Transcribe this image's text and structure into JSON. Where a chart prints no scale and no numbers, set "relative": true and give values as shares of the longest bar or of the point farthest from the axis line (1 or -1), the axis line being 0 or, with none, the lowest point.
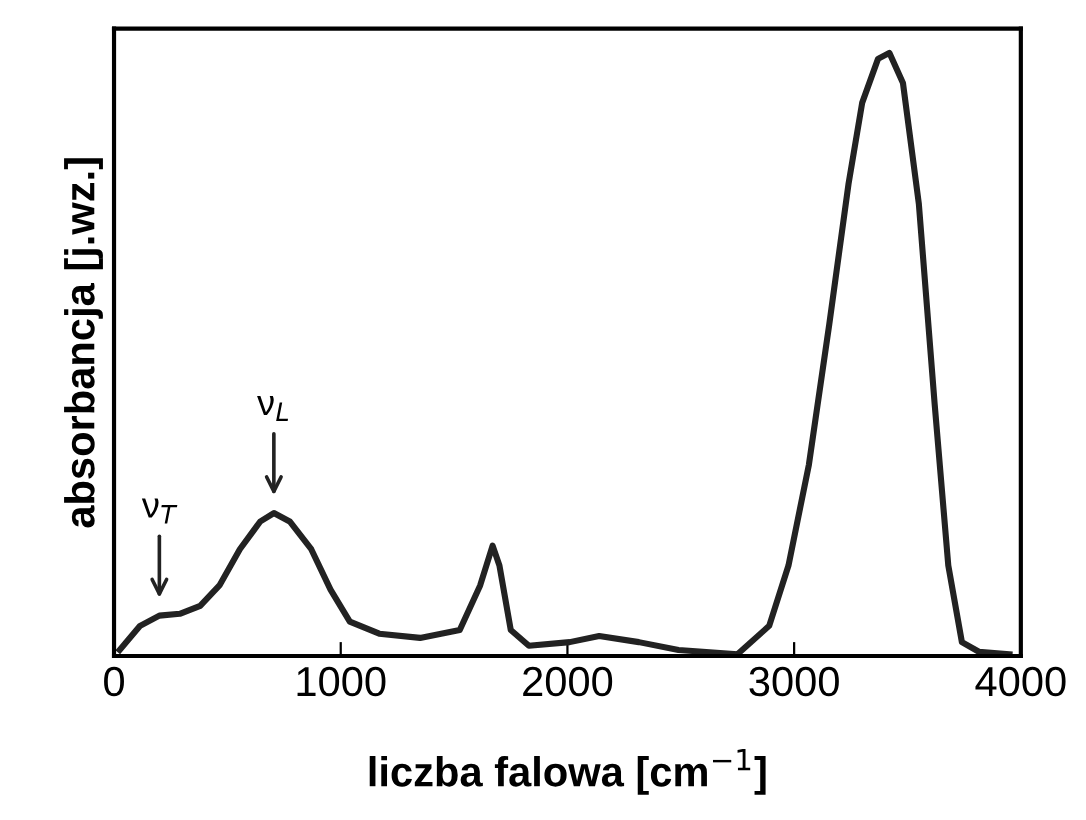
{
  "chart_data": {
    "type": "line",
    "relative": true,
    "xlabel": "liczba falowa [cm$^{−1}$]",
    "ylabel": "absorbancja [j.wz.]",
    "xlim": [
      0,
      4000
    ],
    "xticks": [
      0,
      1000,
      2000,
      3000,
      4000
    ],
    "grid": false,
    "legend": false,
    "marker": "none",
    "line_style": "solid",
    "series": [
      {
        "color": "#222222",
        "x": [
          25,
          115,
          200,
          290,
          380,
          465,
          555,
          645,
          705,
          775,
          870,
          955,
          1040,
          1170,
          1350,
          1525,
          1615,
          1670,
          1700,
          1750,
          1830,
          2010,
          2140,
          2315,
          2490,
          2750,
          2890,
          2975,
          3065,
          3155,
          3240,
          3300,
          3370,
          3420,
          3480,
          3550,
          3620,
          3680,
          3740,
          3815,
          3950
        ],
        "values": [
          0.01,
          0.05,
          0.067,
          0.07,
          0.083,
          0.117,
          0.177,
          0.223,
          0.237,
          0.223,
          0.177,
          0.11,
          0.057,
          0.037,
          0.03,
          0.043,
          0.117,
          0.183,
          0.15,
          0.043,
          0.017,
          0.023,
          0.033,
          0.023,
          0.01,
          0.003,
          0.05,
          0.15,
          0.317,
          0.55,
          0.783,
          0.917,
          0.99,
          1.0,
          0.95,
          0.75,
          0.417,
          0.15,
          0.023,
          0.007,
          0.003
        ]
      }
    ],
    "annotations": [
      {
        "text": "ν$_{T}$",
        "x": 200,
        "y": 0.067
      },
      {
        "text": "ν$_{L}$",
        "x": 705,
        "y": 0.237
      }
    ]
  }
}
